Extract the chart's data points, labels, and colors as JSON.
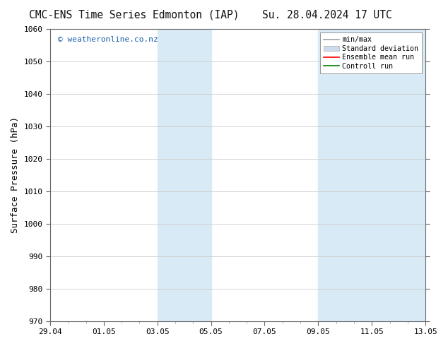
{
  "title_left": "CMC-ENS Time Series Edmonton (IAP)",
  "title_right": "Su. 28.04.2024 17 UTC",
  "ylabel": "Surface Pressure (hPa)",
  "ylim": [
    970,
    1060
  ],
  "yticks": [
    970,
    980,
    990,
    1000,
    1010,
    1020,
    1030,
    1040,
    1050,
    1060
  ],
  "xtick_positions": [
    0,
    3,
    6,
    9,
    12,
    15,
    18,
    21
  ],
  "xtick_labels": [
    "29.04",
    "01.05",
    "03.05",
    "05.05",
    "07.05",
    "09.05",
    "11.05",
    "13.05"
  ],
  "x_total": 21,
  "watermark": "© weatheronline.co.nz",
  "watermark_color": "#1a5fac",
  "legend_items": [
    {
      "label": "min/max",
      "color": "#a0a0a0",
      "lw": 1.2,
      "ls": "-"
    },
    {
      "label": "Standard deviation",
      "color": "#cddcec",
      "lw": 6,
      "ls": "-"
    },
    {
      "label": "Ensemble mean run",
      "color": "red",
      "lw": 1.2,
      "ls": "-"
    },
    {
      "label": "Controll run",
      "color": "green",
      "lw": 1.2,
      "ls": "-"
    }
  ],
  "shaded_regions": [
    {
      "xstart": 6.0,
      "xend": 9.0,
      "color": "#d8eaf5"
    },
    {
      "xstart": 15.0,
      "xend": 21.0,
      "color": "#d8eaf5"
    }
  ],
  "bg_color": "#ffffff",
  "plot_bg_color": "#ffffff",
  "grid_color": "#cccccc",
  "title_fontsize": 10.5,
  "axis_fontsize": 9,
  "tick_fontsize": 8
}
